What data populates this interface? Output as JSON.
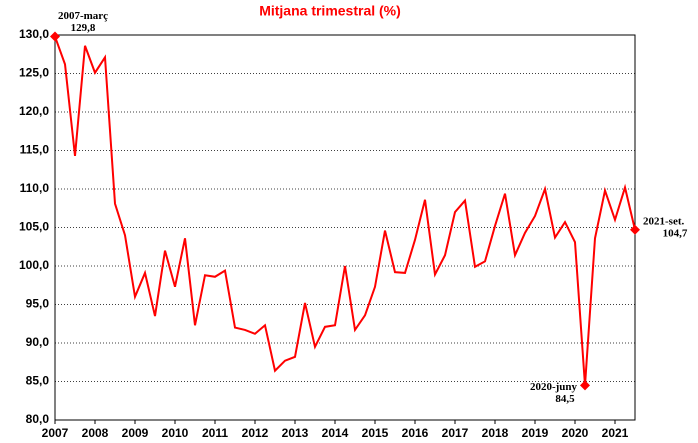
{
  "chart_data": {
    "type": "line",
    "title": "Mitjana trimestral (%)",
    "x": [
      2007,
      2007.25,
      2007.5,
      2007.75,
      2008,
      2008.25,
      2008.5,
      2008.75,
      2009,
      2009.25,
      2009.5,
      2009.75,
      2010,
      2010.25,
      2010.5,
      2010.75,
      2011,
      2011.25,
      2011.5,
      2011.75,
      2012,
      2012.25,
      2012.5,
      2012.75,
      2013,
      2013.25,
      2013.5,
      2013.75,
      2014,
      2014.25,
      2014.5,
      2014.75,
      2015,
      2015.25,
      2015.5,
      2015.75,
      2016,
      2016.25,
      2016.5,
      2016.75,
      2017,
      2017.25,
      2017.5,
      2017.75,
      2018,
      2018.25,
      2018.5,
      2018.75,
      2019,
      2019.25,
      2019.5,
      2019.75,
      2020,
      2020.25,
      2020.5,
      2020.75,
      2021,
      2021.25,
      2021.5
    ],
    "series": [
      {
        "color": "#ff0000",
        "values": [
          129.8,
          126.2,
          114.3,
          128.6,
          125.1,
          127.1,
          108.1,
          104.0,
          96.0,
          99.1,
          93.5,
          102.0,
          97.3,
          103.6,
          92.3,
          98.8,
          98.6,
          99.4,
          92.0,
          91.7,
          91.2,
          92.3,
          86.4,
          87.7,
          88.2,
          95.2,
          89.5,
          92.1,
          92.3,
          100.0,
          91.7,
          93.6,
          97.3,
          104.6,
          99.2,
          99.1,
          103.4,
          108.6,
          98.9,
          101.4,
          107.0,
          108.5,
          99.9,
          100.6,
          105.2,
          109.4,
          101.4,
          104.3,
          106.5,
          110.0,
          103.7,
          105.7,
          103.1,
          84.5,
          103.6,
          109.8,
          106.0,
          110.2,
          104.7
        ]
      }
    ],
    "xlim": [
      2007,
      2021.5
    ],
    "xticks": [
      2007,
      2008,
      2009,
      2010,
      2011,
      2012,
      2013,
      2014,
      2015,
      2016,
      2017,
      2018,
      2019,
      2020,
      2021
    ],
    "ylim": [
      80,
      130
    ],
    "yticks": [
      {
        "value": 80,
        "label": "80,0"
      },
      {
        "value": 85,
        "label": "85,0"
      },
      {
        "value": 90,
        "label": "90,0"
      },
      {
        "value": 95,
        "label": "95,0"
      },
      {
        "value": 100,
        "label": "100,0"
      },
      {
        "value": 105,
        "label": "105,0"
      },
      {
        "value": 110,
        "label": "110,0"
      },
      {
        "value": 115,
        "label": "115,0"
      },
      {
        "value": 120,
        "label": "120,0"
      },
      {
        "value": 125,
        "label": "125,0"
      },
      {
        "value": 130,
        "label": "130,0"
      }
    ],
    "grid": true,
    "annotations": [
      {
        "label": "2007-març",
        "value_label": "129,8",
        "x": 2007,
        "y": 129.8
      },
      {
        "label": "2020-juny",
        "value_label": "84,5",
        "x": 2020.25,
        "y": 84.5
      },
      {
        "label": "2021-set.",
        "value_label": "104,7",
        "x": 2021.5,
        "y": 104.7
      }
    ]
  }
}
